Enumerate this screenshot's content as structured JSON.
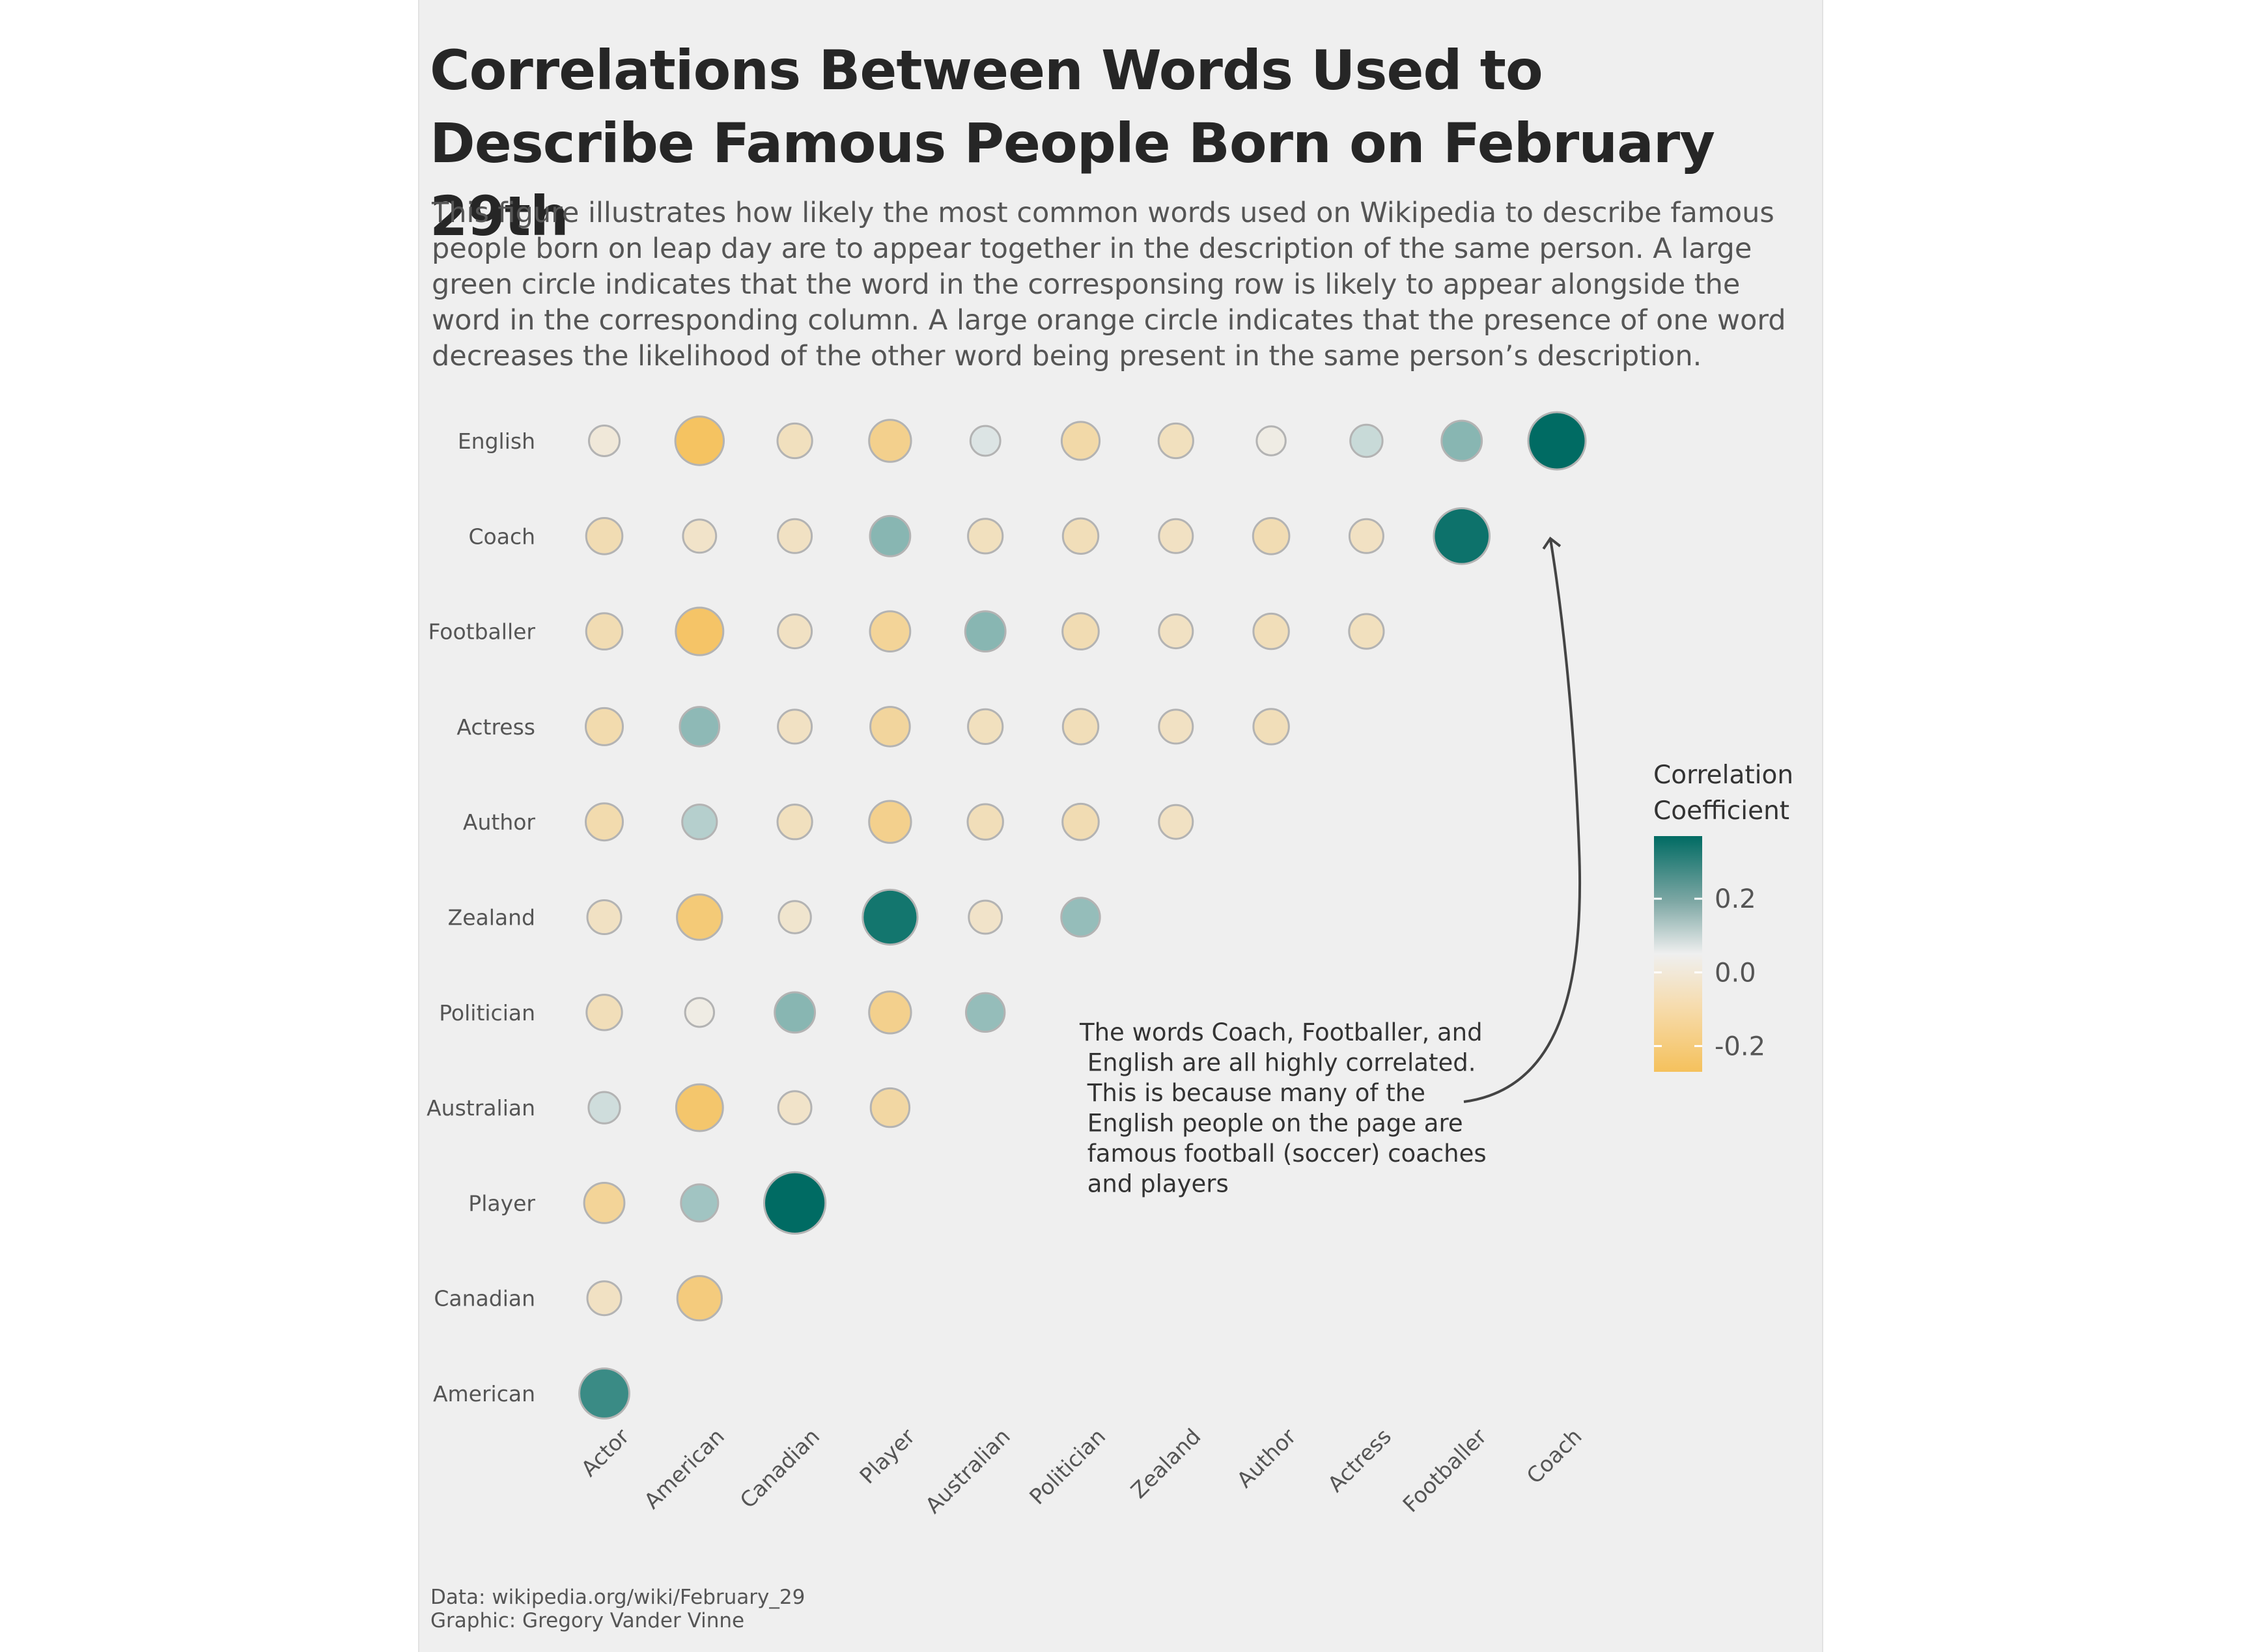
{
  "title": "Correlations Between Words Used to Describe Famous People Born on February 29th",
  "subtitle": "This figure illustrates how likely the most common words used on Wikipedia to describe famous people born on leap day are to appear together in the description of the same person. A large green circle indicates that the word in the corresponsing row is likely to appear alongside the word in the corresponding column. A large orange circle indicates that the presence of one word decreases the likelihood of the other word being present in the same person’s description.",
  "caption": {
    "data_source": "Data: wikipedia.org/wiki/February_29",
    "graphic_credit": "Graphic: Gregory Vander Vinne"
  },
  "colors": {
    "positive": "#006b63",
    "zero": "#efefef",
    "negative": "#f5c15c",
    "circle_stroke": "#b3b3b3",
    "text": "#555555"
  },
  "chart_data": {
    "type": "heatmap",
    "columns": [
      "Actor",
      "American",
      "Canadian",
      "Player",
      "Australian",
      "Politician",
      "Zealand",
      "Author",
      "Actress",
      "Footballer",
      "Coach"
    ],
    "rows": [
      "English",
      "Coach",
      "Footballer",
      "Actress",
      "Author",
      "Zealand",
      "Politician",
      "Australian",
      "Player",
      "Canadian",
      "American"
    ],
    "values": [
      [
        -0.04,
        -0.26,
        -0.09,
        -0.18,
        0.03,
        -0.13,
        -0.09,
        -0.02,
        0.06,
        0.16,
        0.37
      ],
      [
        -0.11,
        -0.07,
        -0.08,
        0.16,
        -0.09,
        -0.1,
        -0.08,
        -0.11,
        -0.08,
        0.35,
        null
      ],
      [
        -0.11,
        -0.25,
        -0.08,
        -0.16,
        0.16,
        -0.11,
        -0.08,
        -0.1,
        -0.09,
        null,
        null
      ],
      [
        -0.12,
        0.15,
        -0.08,
        -0.15,
        -0.09,
        -0.1,
        -0.08,
        -0.1,
        null,
        null,
        null
      ],
      [
        -0.12,
        0.09,
        -0.09,
        -0.18,
        -0.1,
        -0.11,
        -0.08,
        null,
        null,
        null,
        null
      ],
      [
        -0.08,
        -0.22,
        -0.06,
        0.34,
        -0.07,
        0.14,
        null,
        null,
        null,
        null,
        null
      ],
      [
        -0.1,
        -0.02,
        0.16,
        -0.18,
        0.14,
        null,
        null,
        null,
        null,
        null,
        null
      ],
      [
        0.05,
        -0.24,
        -0.07,
        -0.14,
        null,
        null,
        null,
        null,
        null,
        null,
        null
      ],
      [
        -0.16,
        0.12,
        0.42,
        null,
        null,
        null,
        null,
        null,
        null,
        null,
        null
      ],
      [
        -0.08,
        -0.21,
        null,
        null,
        null,
        null,
        null,
        null,
        null,
        null,
        null
      ],
      [
        0.28,
        null,
        null,
        null,
        null,
        null,
        null,
        null,
        null,
        null,
        null
      ]
    ],
    "value_range": [
      -0.27,
      0.37
    ],
    "legend": {
      "title": "Correlation Coefficient",
      "ticks": [
        0.2,
        0.0,
        -0.2
      ],
      "tick_labels": [
        "0.2",
        "0.0",
        "-0.2"
      ],
      "placement": "right"
    },
    "annotation": {
      "text": "The words Coach, Footballer, and English are all highly correlated. This is because many of the English people on the page are famous football (soccer) coaches and players",
      "lines": [
        "The words Coach, Footballer, and",
        " English are all highly correlated.",
        " This is because many of the",
        " English people on the page are",
        " famous football (soccer) coaches",
        " and players"
      ]
    }
  }
}
